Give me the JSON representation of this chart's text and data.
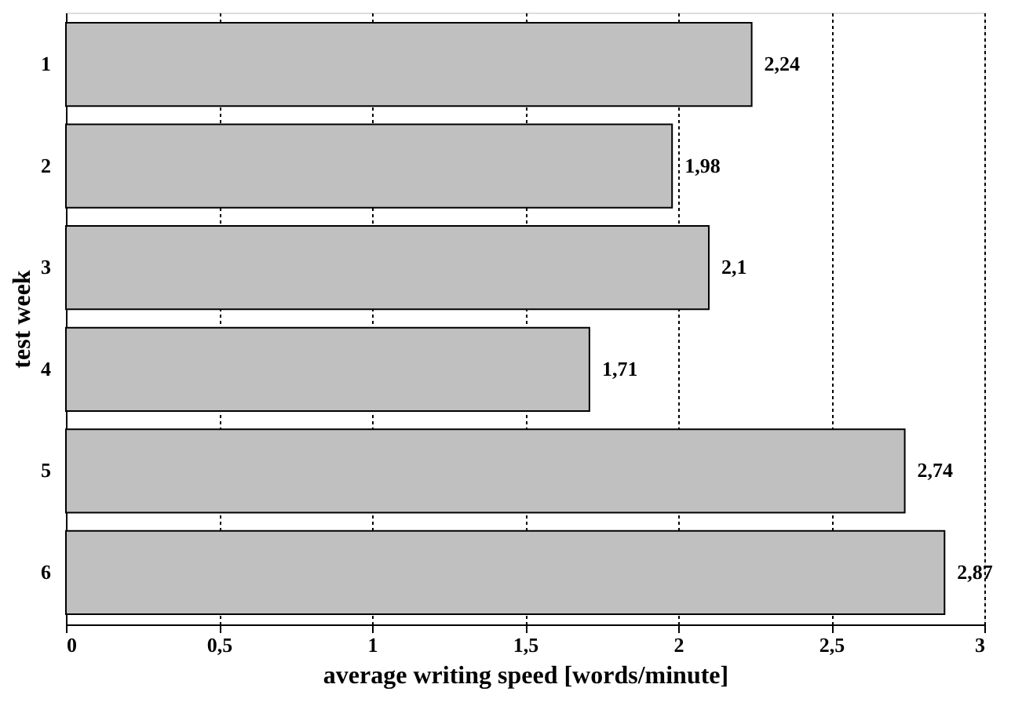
{
  "chart_data": {
    "type": "bar",
    "orientation": "horizontal",
    "xlabel": "average writing speed [words/minute]",
    "ylabel": "test week",
    "categories": [
      "1",
      "2",
      "3",
      "4",
      "5",
      "6"
    ],
    "values": [
      2.24,
      1.98,
      2.1,
      1.71,
      2.74,
      2.87
    ],
    "value_labels": [
      "2,24",
      "1,98",
      "2,1",
      "1,71",
      "2,74",
      "2,87"
    ],
    "color": "#c0c0c0",
    "xlim": [
      0,
      3
    ],
    "xticks": [
      0,
      {
        "value": 0.5,
        "label": "0,5"
      },
      1,
      {
        "value": 1.5,
        "label": "1,5"
      },
      2,
      {
        "value": 2.5,
        "label": "2,5"
      },
      3
    ],
    "grid": "x"
  }
}
